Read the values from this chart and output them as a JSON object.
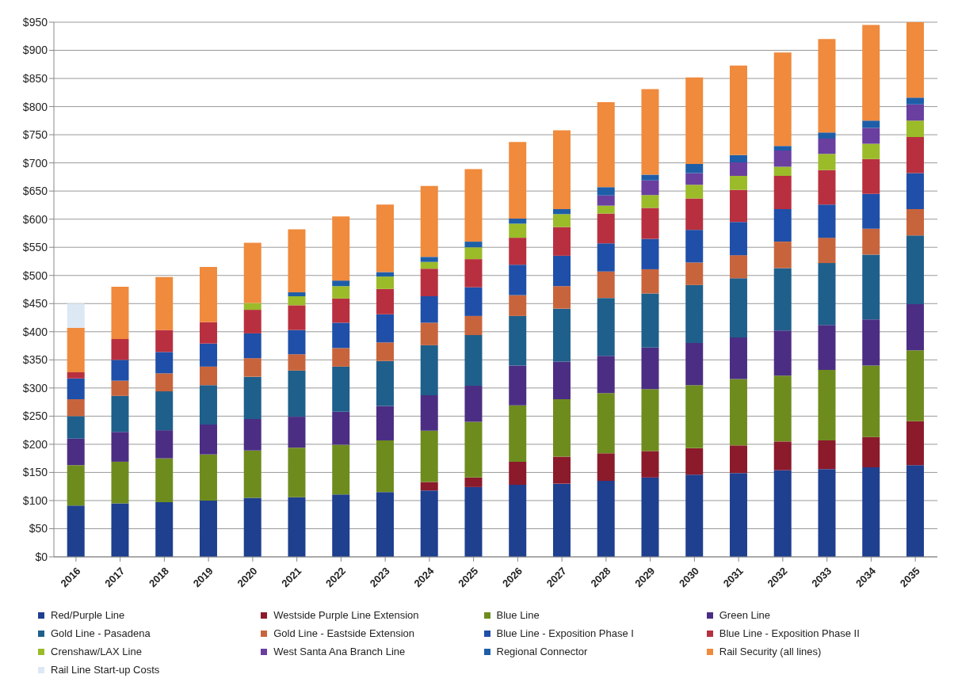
{
  "chart_data": {
    "type": "bar",
    "stacked": true,
    "grid": "y",
    "legend": "bottom",
    "categories": [
      "2016",
      "2017",
      "2018",
      "2019",
      "2020",
      "2021",
      "2022",
      "2023",
      "2024",
      "2025",
      "2026",
      "2027",
      "2028",
      "2029",
      "2030",
      "2031",
      "2032",
      "2033",
      "2034",
      "2035"
    ],
    "ylim": [
      0,
      950
    ],
    "yticks": [
      {
        "value": 0,
        "label": "$0"
      },
      {
        "value": 50,
        "label": "$50"
      },
      {
        "value": 100,
        "label": "$100"
      },
      {
        "value": 150,
        "label": "$150"
      },
      {
        "value": 200,
        "label": "$200"
      },
      {
        "value": 250,
        "label": "$250"
      },
      {
        "value": 300,
        "label": "$300"
      },
      {
        "value": 350,
        "label": "$350"
      },
      {
        "value": 400,
        "label": "$400"
      },
      {
        "value": 450,
        "label": "$450"
      },
      {
        "value": 500,
        "label": "$500"
      },
      {
        "value": 550,
        "label": "$550"
      },
      {
        "value": 600,
        "label": "$600"
      },
      {
        "value": 650,
        "label": "$650"
      },
      {
        "value": 700,
        "label": "$700"
      },
      {
        "value": 750,
        "label": "$750"
      },
      {
        "value": 800,
        "label": "$800"
      },
      {
        "value": 850,
        "label": "$850"
      },
      {
        "value": 900,
        "label": "$900"
      },
      {
        "value": 950,
        "label": "$950"
      }
    ],
    "series": [
      {
        "name": "Red/Purple Line",
        "color": "#1f3f8f",
        "values": [
          91,
          95,
          97,
          100,
          105,
          106,
          111,
          115,
          118,
          124,
          128,
          130,
          135,
          141,
          146,
          149,
          154,
          156,
          159,
          163
        ]
      },
      {
        "name": "Westside Purple Line Extension",
        "color": "#8b1a2b",
        "values": [
          0,
          0,
          0,
          0,
          0,
          0,
          0,
          0,
          15,
          17,
          41,
          48,
          49,
          47,
          47,
          49,
          51,
          51,
          54,
          78
        ]
      },
      {
        "name": "Blue Line",
        "color": "#6e8c1e",
        "values": [
          72,
          74,
          78,
          82,
          84,
          88,
          88,
          92,
          91,
          99,
          100,
          102,
          107,
          110,
          112,
          118,
          117,
          125,
          127,
          126
        ]
      },
      {
        "name": "Green Line",
        "color": "#4b2e83",
        "values": [
          47,
          53,
          50,
          53,
          56,
          55,
          59,
          61,
          63,
          64,
          71,
          67,
          66,
          74,
          75,
          74,
          80,
          80,
          82,
          82
        ]
      },
      {
        "name": "Gold Line - Pasadena",
        "color": "#1f5f8b",
        "values": [
          40,
          64,
          69,
          70,
          75,
          82,
          80,
          80,
          89,
          90,
          88,
          94,
          103,
          96,
          103,
          105,
          111,
          110,
          115,
          122
        ]
      },
      {
        "name": "Gold Line - Eastside Extension",
        "color": "#c8643c",
        "values": [
          30,
          27,
          32,
          33,
          33,
          29,
          33,
          33,
          40,
          34,
          37,
          40,
          47,
          43,
          40,
          41,
          47,
          45,
          46,
          47
        ]
      },
      {
        "name": "Blue Line - Exposition Phase I",
        "color": "#1f4fa8",
        "values": [
          37,
          37,
          38,
          41,
          44,
          43,
          45,
          50,
          47,
          51,
          54,
          54,
          50,
          54,
          58,
          59,
          58,
          59,
          62,
          64
        ]
      },
      {
        "name": "Blue Line - Exposition Phase II",
        "color": "#b8303f",
        "values": [
          11,
          37,
          39,
          38,
          42,
          44,
          43,
          45,
          49,
          50,
          48,
          51,
          53,
          55,
          56,
          57,
          59,
          61,
          62,
          64
        ]
      },
      {
        "name": "Crenshaw/LAX Line",
        "color": "#9bbb29",
        "values": [
          0,
          0,
          0,
          0,
          12,
          16,
          22,
          22,
          12,
          21,
          25,
          23,
          14,
          23,
          24,
          25,
          16,
          29,
          27,
          29
        ]
      },
      {
        "name": "West Santa Ana Branch Line",
        "color": "#6a3fa0",
        "values": [
          0,
          0,
          0,
          0,
          0,
          0,
          0,
          0,
          0,
          0,
          0,
          0,
          18,
          26,
          21,
          24,
          29,
          27,
          28,
          29
        ]
      },
      {
        "name": "Regional Connector",
        "color": "#1e5ea8",
        "values": [
          0,
          0,
          0,
          0,
          0,
          7,
          10,
          8,
          9,
          10,
          9,
          9,
          15,
          10,
          16,
          13,
          8,
          11,
          13,
          12
        ]
      },
      {
        "name": "Rail Security (all lines)",
        "color": "#f08a3c",
        "values": [
          79,
          93,
          94,
          98,
          107,
          112,
          114,
          120,
          126,
          129,
          136,
          140,
          151,
          152,
          154,
          159,
          166,
          166,
          170,
          135
        ]
      },
      {
        "name": "Rail Line Start-up Costs",
        "color": "#dde8f5",
        "values": [
          43,
          0,
          0,
          0,
          0,
          0,
          0,
          0,
          0,
          0,
          0,
          0,
          0,
          0,
          0,
          0,
          0,
          0,
          0,
          0
        ]
      }
    ]
  }
}
